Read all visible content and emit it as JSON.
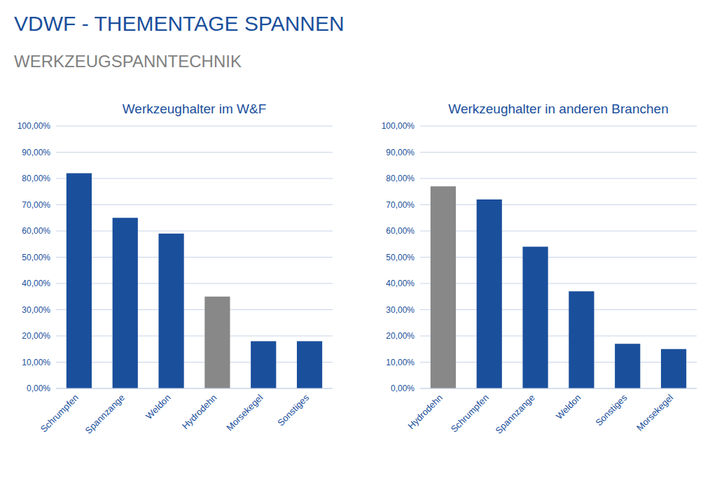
{
  "title": "VDWF - THEMENTAGE SPANNEN",
  "subtitle": "WERKZEUGSPANNTECHNIK",
  "chart_data": [
    {
      "type": "bar",
      "title": "Werkzeughalter im W&F",
      "categories": [
        "Schrumpfen",
        "Spannzange",
        "Weldon",
        "Hydrodehn",
        "Morsekegel",
        "Sonstiges"
      ],
      "values": [
        82.0,
        65.0,
        59.0,
        35.0,
        18.0,
        18.0
      ],
      "colors": [
        "#1a4f9c",
        "#1a4f9c",
        "#1a4f9c",
        "#888888",
        "#1a4f9c",
        "#1a4f9c"
      ],
      "ylim": [
        0,
        100
      ],
      "yticks": [
        {
          "value": 0,
          "label": "0,00%"
        },
        {
          "value": 10,
          "label": "10,00%"
        },
        {
          "value": 20,
          "label": "20,00%"
        },
        {
          "value": 30,
          "label": "30,00%"
        },
        {
          "value": 40,
          "label": "40,00%"
        },
        {
          "value": 50,
          "label": "50,00%"
        },
        {
          "value": 60,
          "label": "60,00%"
        },
        {
          "value": 70,
          "label": "70,00%"
        },
        {
          "value": 80,
          "label": "80,00%"
        },
        {
          "value": 90,
          "label": "90,00%"
        },
        {
          "value": 100,
          "label": "100,00%"
        }
      ],
      "grid": true
    },
    {
      "type": "bar",
      "title": "Werkzeughalter in anderen Branchen",
      "categories": [
        "Hydrodehn",
        "Schrumpfen",
        "Spannzange",
        "Weldon",
        "Sonstiges",
        "Morsekegel"
      ],
      "values": [
        77.0,
        72.0,
        54.0,
        37.0,
        17.0,
        15.0
      ],
      "colors": [
        "#888888",
        "#1a4f9c",
        "#1a4f9c",
        "#1a4f9c",
        "#1a4f9c",
        "#1a4f9c"
      ],
      "ylim": [
        0,
        100
      ],
      "yticks": [
        {
          "value": 0,
          "label": "0,00%"
        },
        {
          "value": 10,
          "label": "10,00%"
        },
        {
          "value": 20,
          "label": "20,00%"
        },
        {
          "value": 30,
          "label": "30,00%"
        },
        {
          "value": 40,
          "label": "40,00%"
        },
        {
          "value": 50,
          "label": "50,00%"
        },
        {
          "value": 60,
          "label": "60,00%"
        },
        {
          "value": 70,
          "label": "70,00%"
        },
        {
          "value": 80,
          "label": "80,00%"
        },
        {
          "value": 90,
          "label": "90,00%"
        },
        {
          "value": 100,
          "label": "100,00%"
        }
      ],
      "grid": true
    }
  ]
}
